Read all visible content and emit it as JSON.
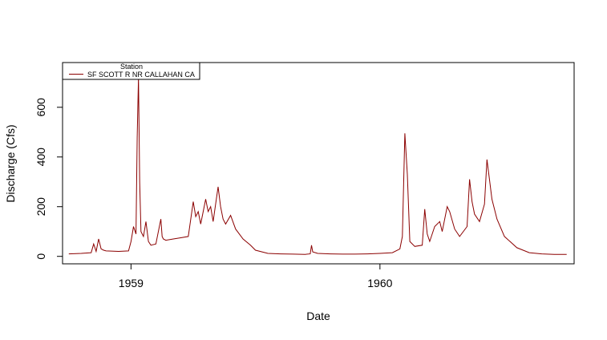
{
  "chart_data": {
    "type": "line",
    "xlabel": "Date",
    "ylabel": "Discharge (Cfs)",
    "xlim": [
      1958.725,
      1960.78
    ],
    "ylim": [
      -30,
      780
    ],
    "x_ticks": [
      1959,
      1960
    ],
    "x_tick_labels": [
      "1959",
      "1960"
    ],
    "y_ticks": [
      0,
      200,
      400,
      600
    ],
    "y_tick_labels": [
      "0",
      "200",
      "400",
      "600"
    ],
    "legend": {
      "title": "Station",
      "position": "top-left",
      "entries": [
        "SF SCOTT R NR CALLAHAN CA"
      ]
    },
    "series": [
      {
        "name": "SF SCOTT R NR CALLAHAN CA",
        "color": "#8b0000",
        "x": [
          1958.75,
          1958.8,
          1958.84,
          1958.85,
          1958.86,
          1958.87,
          1958.88,
          1958.89,
          1958.9,
          1958.95,
          1958.99,
          1959.0,
          1959.01,
          1959.02,
          1959.025,
          1959.03,
          1959.035,
          1959.04,
          1959.05,
          1959.06,
          1959.07,
          1959.08,
          1959.1,
          1959.12,
          1959.125,
          1959.13,
          1959.14,
          1959.17,
          1959.2,
          1959.23,
          1959.25,
          1959.26,
          1959.27,
          1959.28,
          1959.3,
          1959.31,
          1959.32,
          1959.33,
          1959.35,
          1959.36,
          1959.37,
          1959.38,
          1959.4,
          1959.42,
          1959.45,
          1959.48,
          1959.5,
          1959.55,
          1959.6,
          1959.65,
          1959.7,
          1959.72,
          1959.725,
          1959.73,
          1959.75,
          1959.8,
          1959.85,
          1959.9,
          1959.95,
          1960.0,
          1960.05,
          1960.08,
          1960.09,
          1960.1,
          1960.11,
          1960.12,
          1960.14,
          1960.17,
          1960.18,
          1960.19,
          1960.2,
          1960.22,
          1960.24,
          1960.25,
          1960.27,
          1960.28,
          1960.3,
          1960.32,
          1960.35,
          1960.36,
          1960.37,
          1960.38,
          1960.4,
          1960.42,
          1960.43,
          1960.44,
          1960.45,
          1960.47,
          1960.5,
          1960.55,
          1960.6,
          1960.65,
          1960.7,
          1960.75
        ],
        "y": [
          10,
          12,
          15,
          50,
          20,
          70,
          30,
          25,
          22,
          20,
          22,
          60,
          120,
          90,
          480,
          720,
          300,
          100,
          80,
          140,
          60,
          45,
          50,
          150,
          80,
          70,
          65,
          70,
          75,
          80,
          220,
          160,
          180,
          130,
          230,
          180,
          200,
          140,
          280,
          200,
          150,
          130,
          165,
          110,
          70,
          45,
          25,
          12,
          10,
          9,
          8,
          10,
          45,
          18,
          12,
          10,
          9,
          9,
          10,
          12,
          15,
          30,
          80,
          495,
          330,
          60,
          40,
          45,
          190,
          90,
          60,
          120,
          140,
          100,
          200,
          180,
          110,
          80,
          120,
          310,
          220,
          170,
          140,
          210,
          390,
          310,
          230,
          150,
          80,
          35,
          15,
          10,
          8,
          8
        ]
      }
    ]
  }
}
